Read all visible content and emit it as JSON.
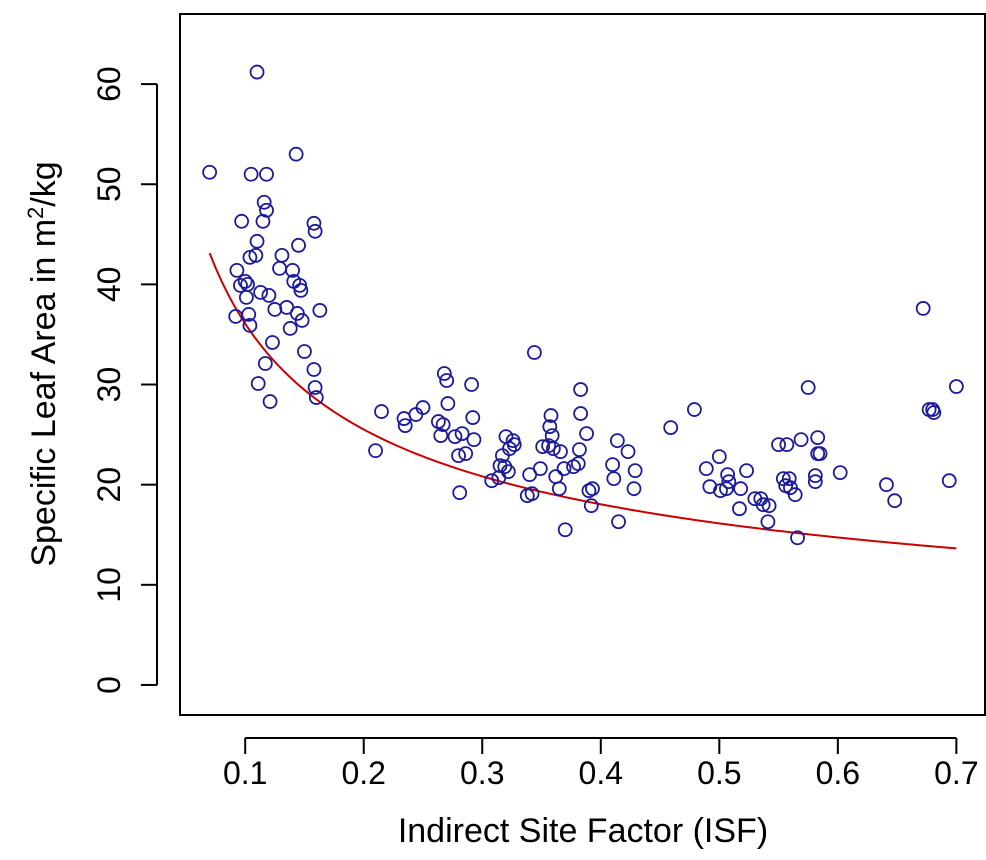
{
  "chart_data": {
    "type": "scatter",
    "title": "",
    "xlabel": "Indirect Site Factor (ISF)",
    "ylabel": {
      "prefix": "Specific Leaf Area in  m",
      "superscript": "2",
      "suffix": "/kg"
    },
    "xlim": [
      0.045,
      0.725
    ],
    "ylim": [
      -3,
      67
    ],
    "xticks": [
      0.1,
      0.2,
      0.3,
      0.4,
      0.5,
      0.6,
      0.7
    ],
    "xtick_labels": [
      "0.1",
      "0.2",
      "0.3",
      "0.4",
      "0.5",
      "0.6",
      "0.7"
    ],
    "yticks": [
      0,
      10,
      20,
      30,
      40,
      50,
      60
    ],
    "ytick_labels": [
      "0",
      "10",
      "20",
      "30",
      "40",
      "50",
      "60"
    ],
    "grid": false,
    "legend": "none",
    "colors": {
      "points": "#1a1a9a",
      "fit_curve": "#cc0000",
      "axes": "#000000"
    },
    "fit_curve": {
      "form": "power",
      "a": 11.41,
      "b": -0.5,
      "x_range": [
        0.07,
        0.7
      ]
    },
    "points": [
      [
        0.07,
        51.2
      ],
      [
        0.092,
        36.8
      ],
      [
        0.093,
        41.4
      ],
      [
        0.096,
        39.9
      ],
      [
        0.097,
        46.3
      ],
      [
        0.1,
        40.3
      ],
      [
        0.101,
        38.7
      ],
      [
        0.102,
        40.0
      ],
      [
        0.103,
        37.0
      ],
      [
        0.104,
        42.7
      ],
      [
        0.104,
        35.9
      ],
      [
        0.105,
        51.0
      ],
      [
        0.109,
        42.9
      ],
      [
        0.11,
        44.3
      ],
      [
        0.11,
        61.2
      ],
      [
        0.111,
        30.1
      ],
      [
        0.113,
        39.2
      ],
      [
        0.115,
        46.3
      ],
      [
        0.116,
        48.2
      ],
      [
        0.117,
        32.1
      ],
      [
        0.118,
        51.0
      ],
      [
        0.118,
        47.4
      ],
      [
        0.12,
        38.9
      ],
      [
        0.121,
        28.3
      ],
      [
        0.123,
        34.2
      ],
      [
        0.125,
        37.5
      ],
      [
        0.129,
        41.6
      ],
      [
        0.131,
        42.9
      ],
      [
        0.135,
        37.7
      ],
      [
        0.138,
        35.6
      ],
      [
        0.14,
        41.4
      ],
      [
        0.141,
        40.3
      ],
      [
        0.143,
        53.0
      ],
      [
        0.144,
        37.1
      ],
      [
        0.145,
        43.9
      ],
      [
        0.146,
        39.9
      ],
      [
        0.147,
        39.4
      ],
      [
        0.148,
        36.4
      ],
      [
        0.15,
        33.3
      ],
      [
        0.158,
        31.5
      ],
      [
        0.158,
        46.1
      ],
      [
        0.159,
        45.3
      ],
      [
        0.159,
        29.7
      ],
      [
        0.16,
        28.7
      ],
      [
        0.163,
        37.4
      ],
      [
        0.21,
        23.4
      ],
      [
        0.215,
        27.3
      ],
      [
        0.234,
        26.6
      ],
      [
        0.235,
        25.9
      ],
      [
        0.244,
        27.0
      ],
      [
        0.25,
        27.7
      ],
      [
        0.263,
        26.3
      ],
      [
        0.265,
        24.9
      ],
      [
        0.267,
        26.0
      ],
      [
        0.268,
        31.1
      ],
      [
        0.27,
        30.4
      ],
      [
        0.271,
        28.1
      ],
      [
        0.277,
        24.8
      ],
      [
        0.28,
        22.9
      ],
      [
        0.281,
        19.2
      ],
      [
        0.283,
        25.1
      ],
      [
        0.286,
        23.1
      ],
      [
        0.291,
        30.0
      ],
      [
        0.292,
        26.7
      ],
      [
        0.293,
        24.5
      ],
      [
        0.308,
        20.4
      ],
      [
        0.314,
        20.7
      ],
      [
        0.315,
        21.9
      ],
      [
        0.317,
        22.9
      ],
      [
        0.319,
        21.8
      ],
      [
        0.32,
        24.8
      ],
      [
        0.322,
        21.3
      ],
      [
        0.323,
        23.6
      ],
      [
        0.326,
        24.4
      ],
      [
        0.327,
        24.0
      ],
      [
        0.338,
        18.9
      ],
      [
        0.34,
        21.0
      ],
      [
        0.342,
        19.1
      ],
      [
        0.344,
        33.2
      ],
      [
        0.349,
        21.6
      ],
      [
        0.351,
        23.8
      ],
      [
        0.356,
        23.9
      ],
      [
        0.357,
        25.8
      ],
      [
        0.358,
        26.9
      ],
      [
        0.359,
        24.9
      ],
      [
        0.36,
        23.6
      ],
      [
        0.362,
        20.8
      ],
      [
        0.365,
        19.6
      ],
      [
        0.366,
        23.3
      ],
      [
        0.369,
        21.6
      ],
      [
        0.37,
        15.5
      ],
      [
        0.377,
        21.8
      ],
      [
        0.381,
        22.1
      ],
      [
        0.382,
        23.5
      ],
      [
        0.383,
        29.5
      ],
      [
        0.383,
        27.1
      ],
      [
        0.388,
        25.1
      ],
      [
        0.39,
        19.4
      ],
      [
        0.392,
        17.9
      ],
      [
        0.393,
        19.6
      ],
      [
        0.41,
        22.0
      ],
      [
        0.411,
        20.6
      ],
      [
        0.414,
        24.4
      ],
      [
        0.415,
        16.3
      ],
      [
        0.423,
        23.3
      ],
      [
        0.428,
        19.6
      ],
      [
        0.429,
        21.4
      ],
      [
        0.459,
        25.7
      ],
      [
        0.479,
        27.5
      ],
      [
        0.489,
        21.6
      ],
      [
        0.492,
        19.8
      ],
      [
        0.5,
        22.8
      ],
      [
        0.501,
        19.4
      ],
      [
        0.506,
        19.6
      ],
      [
        0.507,
        21.0
      ],
      [
        0.508,
        20.3
      ],
      [
        0.517,
        17.6
      ],
      [
        0.518,
        19.6
      ],
      [
        0.523,
        21.4
      ],
      [
        0.53,
        18.6
      ],
      [
        0.535,
        18.6
      ],
      [
        0.537,
        18.0
      ],
      [
        0.541,
        16.3
      ],
      [
        0.542,
        17.9
      ],
      [
        0.55,
        24.0
      ],
      [
        0.554,
        20.6
      ],
      [
        0.556,
        19.9
      ],
      [
        0.557,
        24.0
      ],
      [
        0.559,
        20.6
      ],
      [
        0.56,
        19.7
      ],
      [
        0.564,
        19.0
      ],
      [
        0.566,
        14.7
      ],
      [
        0.569,
        24.5
      ],
      [
        0.575,
        29.7
      ],
      [
        0.581,
        20.3
      ],
      [
        0.581,
        20.9
      ],
      [
        0.583,
        23.1
      ],
      [
        0.583,
        24.7
      ],
      [
        0.585,
        23.1
      ],
      [
        0.602,
        21.2
      ],
      [
        0.641,
        20.0
      ],
      [
        0.648,
        18.4
      ],
      [
        0.672,
        37.6
      ],
      [
        0.677,
        27.5
      ],
      [
        0.68,
        27.5
      ],
      [
        0.681,
        27.2
      ],
      [
        0.694,
        20.4
      ],
      [
        0.7,
        29.8
      ]
    ]
  }
}
